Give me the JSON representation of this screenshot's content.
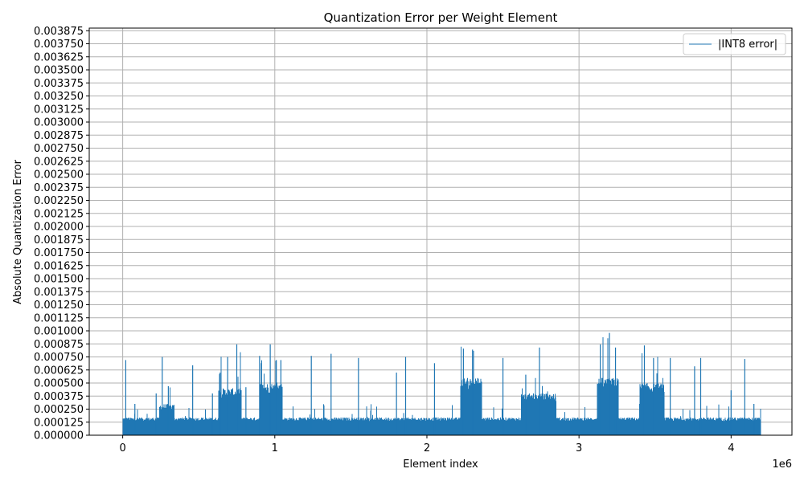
{
  "chart_data": {
    "type": "line",
    "title": "Quantization Error per Weight Element",
    "xlabel": "Element index",
    "ylabel": "Absolute Quantization Error",
    "x_offset_label": "1e6",
    "xlim": [
      -220000,
      4400000
    ],
    "ylim": [
      0,
      0.0039
    ],
    "x_ticks": [
      0,
      1000000,
      2000000,
      3000000,
      4000000
    ],
    "x_tick_labels": [
      "0",
      "1",
      "2",
      "3",
      "4"
    ],
    "y_ticks": [
      0,
      0.000125,
      0.00025,
      0.000375,
      0.0005,
      0.000625,
      0.00075,
      0.000875,
      0.001,
      0.001125,
      0.00125,
      0.001375,
      0.0015,
      0.001625,
      0.00175,
      0.001875,
      0.002,
      0.002125,
      0.00225,
      0.002375,
      0.0025,
      0.002625,
      0.00275,
      0.002875,
      0.003,
      0.003125,
      0.00325,
      0.003375,
      0.0035,
      0.003625,
      0.00375,
      0.003875
    ],
    "y_tick_labels": [
      "0.000000",
      "0.000125",
      "0.000250",
      "0.000375",
      "0.000500",
      "0.000625",
      "0.000750",
      "0.000875",
      "0.001000",
      "0.001125",
      "0.001250",
      "0.001375",
      "0.001500",
      "0.001625",
      "0.001750",
      "0.001875",
      "0.002000",
      "0.002125",
      "0.002250",
      "0.002375",
      "0.002500",
      "0.002625",
      "0.002750",
      "0.002875",
      "0.003000",
      "0.003125",
      "0.003250",
      "0.003375",
      "0.003500",
      "0.003625",
      "0.003750",
      "0.003875"
    ],
    "grid": true,
    "legend_position": "top-right",
    "series": [
      {
        "name": "|INT8 error|",
        "color": "#1f77b4",
        "x_range": [
          0,
          4194304
        ],
        "baseline_envelope": 0.00017,
        "dense_regions": [
          {
            "x": [
              240000,
              340000
            ],
            "envelope": 0.0003
          },
          {
            "x": [
              630000,
              780000
            ],
            "envelope": 0.00045
          },
          {
            "x": [
              900000,
              1050000
            ],
            "envelope": 0.0005
          },
          {
            "x": [
              2220000,
              2360000
            ],
            "envelope": 0.00055
          },
          {
            "x": [
              2620000,
              2850000
            ],
            "envelope": 0.0004
          },
          {
            "x": [
              3120000,
              3260000
            ],
            "envelope": 0.00055
          },
          {
            "x": [
              3400000,
              3560000
            ],
            "envelope": 0.0005
          }
        ],
        "peaks": [
          {
            "x": 20000,
            "y": 0.00072
          },
          {
            "x": 80000,
            "y": 0.0003
          },
          {
            "x": 220000,
            "y": 0.0004
          },
          {
            "x": 260000,
            "y": 0.00075
          },
          {
            "x": 300000,
            "y": 0.00047
          },
          {
            "x": 460000,
            "y": 0.00067
          },
          {
            "x": 590000,
            "y": 0.0004
          },
          {
            "x": 640000,
            "y": 0.0006
          },
          {
            "x": 690000,
            "y": 0.00075
          },
          {
            "x": 750000,
            "y": 0.00087
          },
          {
            "x": 810000,
            "y": 0.00046
          },
          {
            "x": 900000,
            "y": 0.00076
          },
          {
            "x": 970000,
            "y": 0.00087
          },
          {
            "x": 1010000,
            "y": 0.00072
          },
          {
            "x": 1040000,
            "y": 0.00072
          },
          {
            "x": 1240000,
            "y": 0.00076
          },
          {
            "x": 1370000,
            "y": 0.00078
          },
          {
            "x": 1550000,
            "y": 0.00074
          },
          {
            "x": 1800000,
            "y": 0.0006
          },
          {
            "x": 1860000,
            "y": 0.00075
          },
          {
            "x": 2050000,
            "y": 0.00069
          },
          {
            "x": 2240000,
            "y": 0.00083
          },
          {
            "x": 2300000,
            "y": 0.00082
          },
          {
            "x": 2500000,
            "y": 0.00074
          },
          {
            "x": 2650000,
            "y": 0.00058
          },
          {
            "x": 2740000,
            "y": 0.00084
          },
          {
            "x": 3140000,
            "y": 0.00087
          },
          {
            "x": 3200000,
            "y": 0.00098
          },
          {
            "x": 3240000,
            "y": 0.00084
          },
          {
            "x": 3430000,
            "y": 0.00086
          },
          {
            "x": 3490000,
            "y": 0.00074
          },
          {
            "x": 3600000,
            "y": 0.00074
          },
          {
            "x": 3760000,
            "y": 0.00066
          },
          {
            "x": 3800000,
            "y": 0.00074
          },
          {
            "x": 4000000,
            "y": 0.00043
          },
          {
            "x": 4090000,
            "y": 0.00073
          },
          {
            "x": 4150000,
            "y": 0.0003
          }
        ]
      }
    ]
  }
}
